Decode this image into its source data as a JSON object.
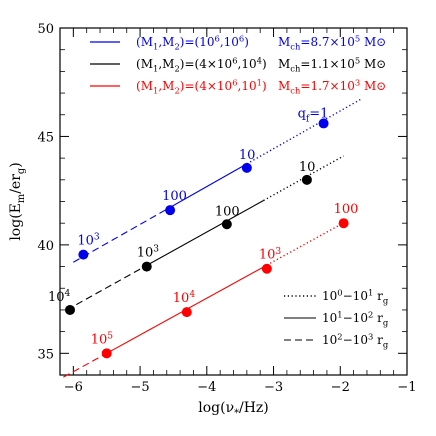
{
  "chart_data": {
    "type": "line",
    "xlabel": "log(ν*/Hz)",
    "ylabel": "log(Em/erg)",
    "xlim": [
      -6.2,
      -1
    ],
    "ylim": [
      34,
      50
    ],
    "xticks": [
      -6,
      -5,
      -4,
      -3,
      -2,
      -1
    ],
    "yticks": [
      35,
      40,
      45,
      50
    ],
    "grid": false,
    "legend_position": "top-left",
    "colors": {
      "blue": "#0000ee",
      "black": "#000000",
      "red": "#ff0000"
    },
    "series": [
      {
        "legend_mass": "(M1,M2)=(10^6,10^6)",
        "legend_mch": "Mch=8.7×10^5 M⊙",
        "color": "blue",
        "line": {
          "x": [
            -6.0,
            -1.7
          ],
          "y": [
            39.2,
            46.7
          ]
        },
        "breaks": [
          -4.6,
          -3.4
        ],
        "points": [
          {
            "x": -5.85,
            "y": 39.55,
            "label": "10^3"
          },
          {
            "x": -4.55,
            "y": 41.6,
            "label": "100"
          },
          {
            "x": -3.4,
            "y": 43.55,
            "label": "10"
          },
          {
            "x": -2.25,
            "y": 45.6,
            "label": "qf=1"
          }
        ]
      },
      {
        "legend_mass": "(M1,M2)=(4×10^6,10^4)",
        "legend_mch": "Mch=1.1×10^5 M⊙",
        "color": "black",
        "line": {
          "x": [
            -6.1,
            -1.95
          ],
          "y": [
            37.0,
            44.1
          ]
        },
        "breaks": [
          -4.9,
          -3.15
        ],
        "points": [
          {
            "x": -6.05,
            "y": 37.0,
            "label": "10^4"
          },
          {
            "x": -4.9,
            "y": 39.0,
            "label": "10^3"
          },
          {
            "x": -3.7,
            "y": 40.95,
            "label": "100"
          },
          {
            "x": -2.5,
            "y": 43.0,
            "label": "10"
          }
        ]
      },
      {
        "legend_mass": "(M1,M2)=(4×10^6,10^1)",
        "legend_mch": "Mch=1.7×10^3 M⊙",
        "color": "red",
        "line": {
          "x": [
            -6.15,
            -1.9
          ],
          "y": [
            33.9,
            41.1
          ]
        },
        "breaks": [
          -5.45,
          -3.1
        ],
        "points": [
          {
            "x": -5.5,
            "y": 35.0,
            "label": "10^5"
          },
          {
            "x": -4.3,
            "y": 36.9,
            "label": "10^4"
          },
          {
            "x": -3.1,
            "y": 38.9,
            "label": "10^3"
          },
          {
            "x": -1.95,
            "y": 41.0,
            "label": "100"
          }
        ]
      }
    ],
    "style_legend": [
      {
        "style": "dotted",
        "label": "10^0−10^1 rg"
      },
      {
        "style": "solid",
        "label": "10^1−10^2 rg"
      },
      {
        "style": "dashed",
        "label": "10^2−10^3 rg"
      }
    ]
  }
}
